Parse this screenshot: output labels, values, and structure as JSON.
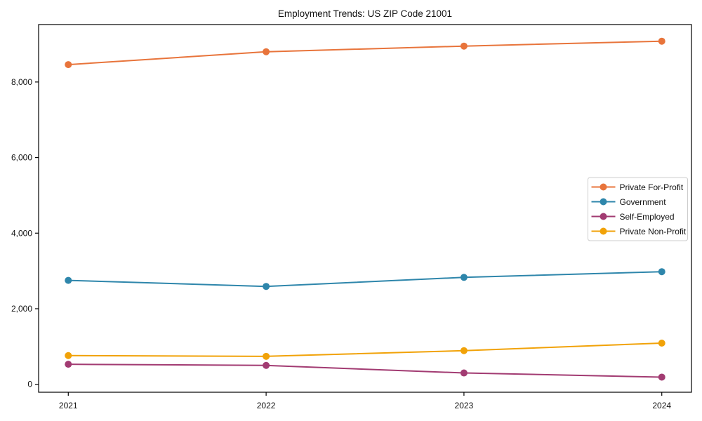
{
  "chart_data": {
    "type": "line",
    "title": "Employment Trends: US ZIP Code 21001",
    "xlabel": "",
    "ylabel": "",
    "x": [
      2021,
      2022,
      2023,
      2024
    ],
    "x_tick_labels": [
      "2021",
      "2022",
      "2023",
      "2024"
    ],
    "y_ticks": [
      {
        "value": 0,
        "label": "0"
      },
      {
        "value": 2000,
        "label": "2,000"
      },
      {
        "value": 4000,
        "label": "4,000"
      },
      {
        "value": 6000,
        "label": "6,000"
      },
      {
        "value": 8000,
        "label": "8,000"
      }
    ],
    "series": [
      {
        "name": "Private For-Profit",
        "color": "#E8743B",
        "values": [
          8460,
          8800,
          8950,
          9080
        ]
      },
      {
        "name": "Government",
        "color": "#2E86AB",
        "values": [
          2750,
          2590,
          2830,
          2980
        ]
      },
      {
        "name": "Self-Employed",
        "color": "#A23B72",
        "values": [
          530,
          500,
          300,
          190
        ]
      },
      {
        "name": "Private Non-Profit",
        "color": "#F1A208",
        "values": [
          760,
          740,
          890,
          1090
        ]
      }
    ],
    "xlim": [
      2020.85,
      2024.15
    ],
    "ylim": [
      -210,
      9520
    ],
    "grid": false,
    "legend_position": "center right",
    "marker": "circle",
    "frame_color": "#000000",
    "legend_border_color": "#cccccc"
  }
}
